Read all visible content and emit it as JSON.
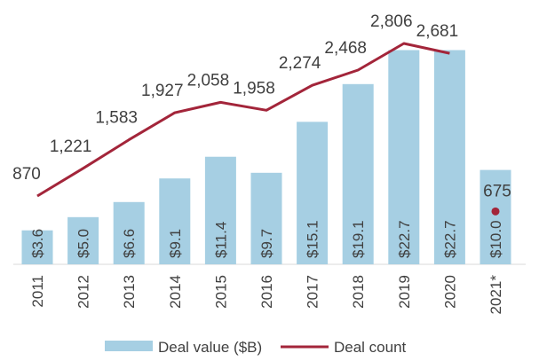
{
  "chart_data": {
    "type": "bar",
    "categories": [
      "2011",
      "2012",
      "2013",
      "2014",
      "2015",
      "2016",
      "2017",
      "2018",
      "2019",
      "2020",
      "2021*"
    ],
    "series": [
      {
        "name": "Deal value ($B)",
        "type": "bar",
        "values": [
          3.6,
          5.0,
          6.6,
          9.1,
          11.4,
          9.7,
          15.1,
          19.1,
          22.7,
          22.7,
          10.0
        ],
        "labels": [
          "$3.6",
          "$5.0",
          "$6.6",
          "$9.1",
          "$11.4",
          "$9.7",
          "$15.1",
          "$19.1",
          "$22.7",
          "$22.7",
          "$10.0"
        ],
        "color": "#a6cfe3"
      },
      {
        "name": "Deal count",
        "type": "line",
        "values": [
          870,
          1221,
          1583,
          1927,
          2058,
          1958,
          2274,
          2468,
          2806,
          2681,
          675
        ],
        "labels": [
          "870",
          "1,221",
          "1,583",
          "1,927",
          "2,058",
          "1,958",
          "2,274",
          "2,468",
          "2,806",
          "2,681",
          "675"
        ],
        "color": "#a3253a",
        "line_ends_at": "2020",
        "marker_only": [
          "2021*"
        ]
      }
    ],
    "legend": {
      "position": "bottom",
      "items": [
        "Deal value ($B)",
        "Deal count"
      ]
    },
    "grid": false
  }
}
